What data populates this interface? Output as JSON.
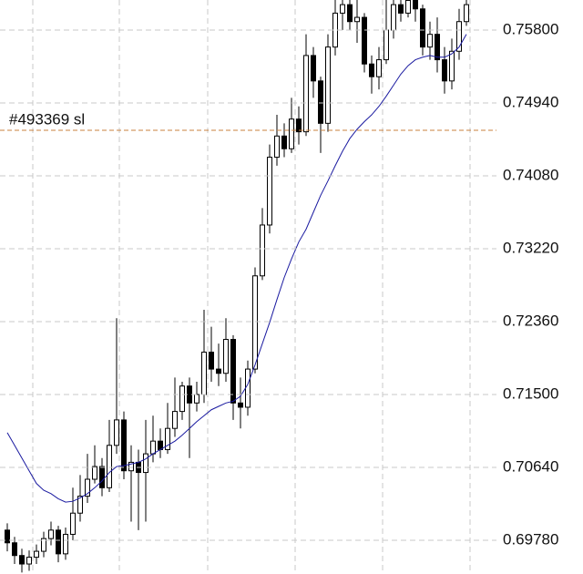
{
  "chart_data": {
    "type": "candlestick",
    "open": [
      0.699,
      0.6975,
      0.696,
      0.695,
      0.6958,
      0.6965,
      0.698,
      0.699,
      0.6962,
      0.6985,
      0.701,
      0.703,
      0.705,
      0.7065,
      0.704,
      0.709,
      0.712,
      0.706,
      0.707,
      0.7058,
      0.708,
      0.7095,
      0.7085,
      0.711,
      0.713,
      0.716,
      0.714,
      0.715,
      0.72,
      0.718,
      0.7175,
      0.7215,
      0.714,
      0.7135,
      0.718,
      0.729,
      0.735,
      0.743,
      0.7455,
      0.744,
      0.7475,
      0.746,
      0.755,
      0.752,
      0.747,
      0.756,
      0.76,
      0.761,
      0.759,
      0.7595,
      0.754,
      0.7525,
      0.7545,
      0.758,
      0.761,
      0.76,
      0.7615,
      0.7605,
      0.756,
      0.7575,
      0.7545,
      0.752,
      0.7555,
      0.759
    ],
    "high": [
      0.6998,
      0.6982,
      0.6968,
      0.6966,
      0.6973,
      0.6988,
      0.7,
      0.6995,
      0.6993,
      0.704,
      0.7055,
      0.708,
      0.709,
      0.7075,
      0.712,
      0.724,
      0.713,
      0.709,
      0.7085,
      0.712,
      0.7125,
      0.711,
      0.714,
      0.717,
      0.7165,
      0.717,
      0.7165,
      0.725,
      0.723,
      0.721,
      0.724,
      0.722,
      0.717,
      0.719,
      0.73,
      0.737,
      0.7445,
      0.748,
      0.747,
      0.75,
      0.749,
      0.7575,
      0.756,
      0.7525,
      0.7575,
      0.7625,
      0.763,
      0.762,
      0.7625,
      0.76,
      0.755,
      0.756,
      0.762,
      0.763,
      0.7625,
      0.7635,
      0.7625,
      0.761,
      0.759,
      0.7595,
      0.756,
      0.757,
      0.7605,
      0.763
    ],
    "low": [
      0.6965,
      0.695,
      0.694,
      0.6942,
      0.695,
      0.6958,
      0.6972,
      0.6952,
      0.6955,
      0.6978,
      0.7,
      0.7022,
      0.7045,
      0.703,
      0.7035,
      0.708,
      0.705,
      0.7,
      0.699,
      0.7,
      0.707,
      0.7075,
      0.708,
      0.71,
      0.712,
      0.7075,
      0.713,
      0.714,
      0.7165,
      0.716,
      0.7165,
      0.712,
      0.711,
      0.7125,
      0.7175,
      0.7285,
      0.734,
      0.742,
      0.743,
      0.7435,
      0.7445,
      0.7455,
      0.75,
      0.7435,
      0.746,
      0.755,
      0.758,
      0.758,
      0.7565,
      0.753,
      0.7505,
      0.751,
      0.754,
      0.757,
      0.759,
      0.7595,
      0.759,
      0.755,
      0.7545,
      0.753,
      0.7505,
      0.751,
      0.7545,
      0.7585
    ],
    "close": [
      0.6975,
      0.696,
      0.695,
      0.6958,
      0.6965,
      0.698,
      0.699,
      0.6962,
      0.6985,
      0.701,
      0.703,
      0.705,
      0.7065,
      0.704,
      0.709,
      0.712,
      0.706,
      0.707,
      0.7058,
      0.708,
      0.7095,
      0.7085,
      0.711,
      0.713,
      0.716,
      0.714,
      0.715,
      0.72,
      0.718,
      0.7175,
      0.7215,
      0.714,
      0.7135,
      0.718,
      0.729,
      0.735,
      0.743,
      0.7455,
      0.744,
      0.7475,
      0.746,
      0.755,
      0.752,
      0.747,
      0.756,
      0.76,
      0.761,
      0.759,
      0.7595,
      0.754,
      0.7525,
      0.7545,
      0.758,
      0.761,
      0.76,
      0.7615,
      0.7605,
      0.756,
      0.7575,
      0.7545,
      0.752,
      0.7555,
      0.759,
      0.761
    ],
    "up_color": "#ffffff",
    "down_color": "#000000",
    "wick_color": "#000000",
    "moving_average": {
      "color": "#1a1aa0",
      "values": [
        0.7105,
        0.709,
        0.7075,
        0.706,
        0.7045,
        0.7037,
        0.7033,
        0.7027,
        0.7023,
        0.7024,
        0.7028,
        0.7033,
        0.704,
        0.7048,
        0.7058,
        0.7065,
        0.7066,
        0.7068,
        0.707,
        0.7074,
        0.708,
        0.7085,
        0.709,
        0.7095,
        0.7102,
        0.711,
        0.7118,
        0.7125,
        0.7132,
        0.7136,
        0.714,
        0.7142,
        0.7148,
        0.7162,
        0.7185,
        0.721,
        0.7235,
        0.7262,
        0.7288,
        0.731,
        0.733,
        0.7345,
        0.7365,
        0.7385,
        0.7402,
        0.742,
        0.7437,
        0.7452,
        0.7463,
        0.7472,
        0.748,
        0.749,
        0.7502,
        0.7515,
        0.7528,
        0.7538,
        0.7545,
        0.7548,
        0.755,
        0.7548,
        0.7548,
        0.7552,
        0.756,
        0.7575
      ]
    },
    "annotations": [
      {
        "text": "#493369 sl",
        "value": 0.74618,
        "color": "#c8803c"
      }
    ],
    "ylim": [
      0.69382,
      0.76155
    ],
    "yticks": [
      {
        "value": 0.758,
        "label": "0.75800"
      },
      {
        "value": 0.7494,
        "label": "0.74940"
      },
      {
        "value": 0.7408,
        "label": "0.74080"
      },
      {
        "value": 0.7322,
        "label": "0.73220"
      },
      {
        "value": 0.7236,
        "label": "0.72360"
      },
      {
        "value": 0.715,
        "label": "0.71500"
      },
      {
        "value": 0.7064,
        "label": "0.70640"
      },
      {
        "value": 0.6978,
        "label": "0.69780"
      }
    ],
    "grid": true
  }
}
